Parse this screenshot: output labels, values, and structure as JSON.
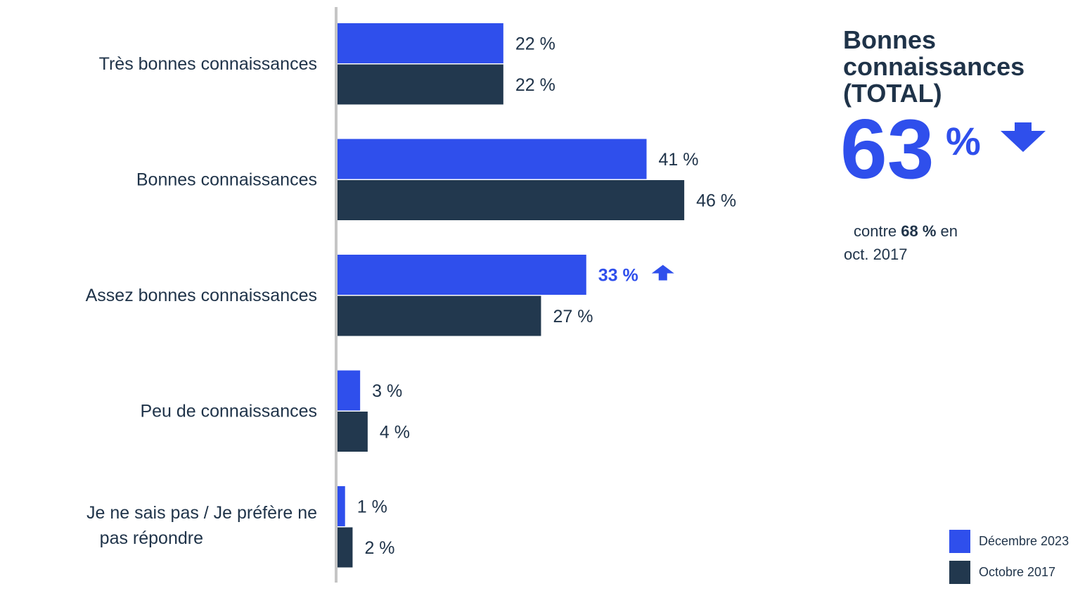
{
  "chart_data": {
    "type": "bar",
    "orientation": "horizontal",
    "categories": [
      "Très bonnes connaissances",
      "Bonnes connaissances",
      "Assez bonnes connaissances",
      "Peu de connaissances",
      "Je ne sais pas / Je préfère ne pas répondre"
    ],
    "series": [
      {
        "name": "Décembre 2023",
        "color": "#2f4fec",
        "values": [
          22,
          41,
          33,
          3,
          1
        ],
        "labels": [
          "22 %",
          "41 %",
          "33 %",
          "3 %",
          "1 %"
        ]
      },
      {
        "name": "Octobre 2017",
        "color": "#22384e",
        "values": [
          22,
          46,
          27,
          4,
          2
        ],
        "labels": [
          "22 %",
          "46 %",
          "27 %",
          "4 %",
          "2 %"
        ]
      }
    ],
    "highlight": {
      "series": 0,
      "category": 2,
      "marker": "up-arrow-icon"
    },
    "xlim": [
      0,
      50
    ],
    "grid": false,
    "legend_position": "bottom-right"
  },
  "kpi": {
    "title": "Bonnes connaissances (TOTAL)",
    "value": "63",
    "unit": "%",
    "trend_icon": "down-arrow-icon",
    "note_prefix": "contre ",
    "note_value": "68 %",
    "note_suffix": " en",
    "note_line2": "oct. 2017"
  },
  "legend": {
    "items": [
      {
        "label": "Décembre 2023",
        "color": "#2f4fec"
      },
      {
        "label": "Octobre 2017",
        "color": "#22384e"
      }
    ]
  }
}
